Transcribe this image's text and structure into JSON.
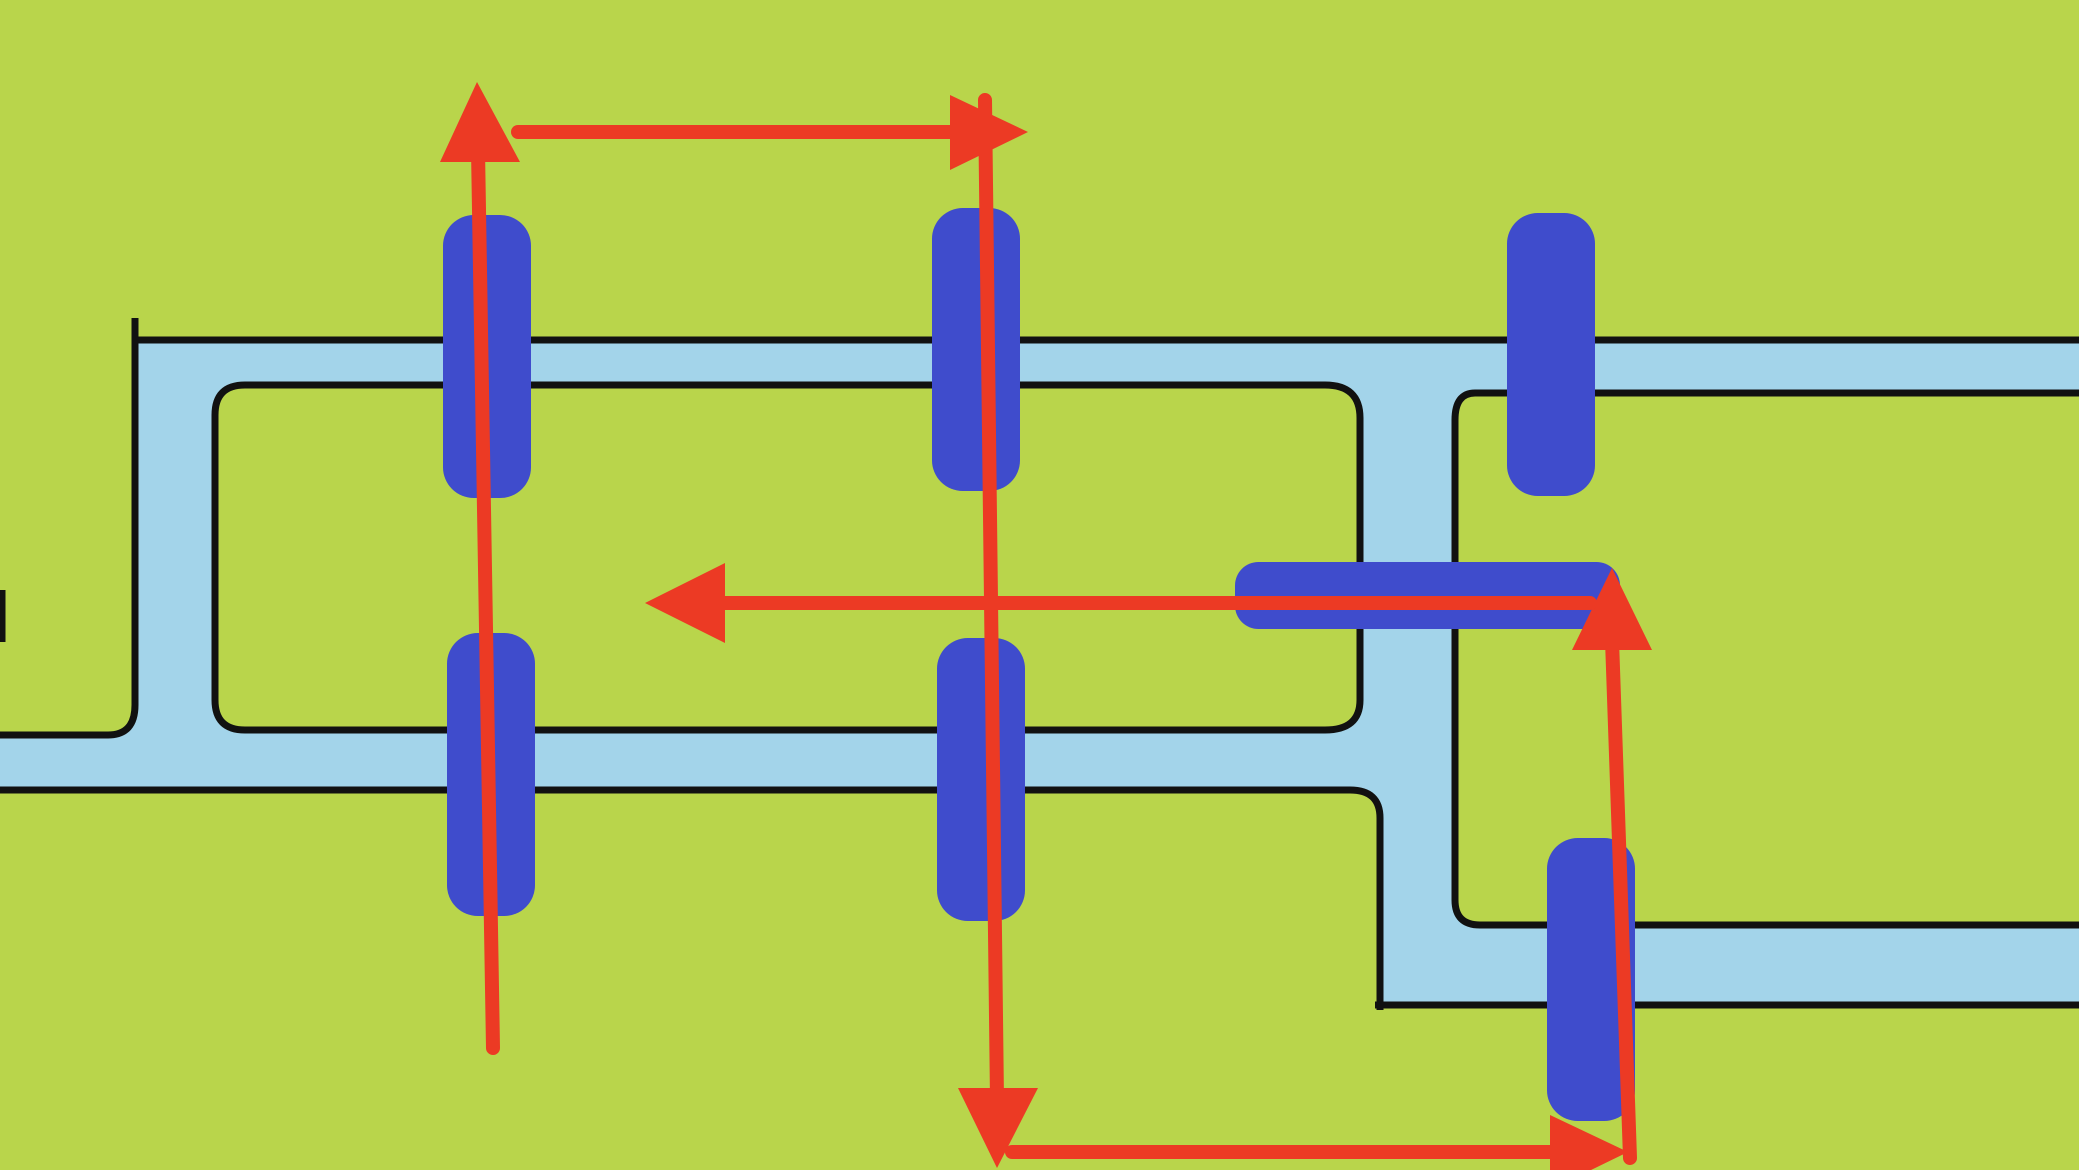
{
  "diagram": {
    "colors": {
      "background": "#b9d54b",
      "waterway": "#a3d4ea",
      "outline": "#111111",
      "marker": "#3f4ccc",
      "arrow": "#ec3a24"
    },
    "markers": [
      {
        "id": "marker-1",
        "orientation": "vertical"
      },
      {
        "id": "marker-2",
        "orientation": "vertical"
      },
      {
        "id": "marker-3",
        "orientation": "vertical"
      },
      {
        "id": "marker-4",
        "orientation": "vertical"
      },
      {
        "id": "marker-5",
        "orientation": "vertical"
      },
      {
        "id": "marker-6",
        "orientation": "horizontal"
      },
      {
        "id": "marker-7",
        "orientation": "vertical"
      }
    ],
    "arrows": [
      {
        "id": "arrow-1",
        "direction": "up"
      },
      {
        "id": "arrow-2",
        "direction": "right"
      },
      {
        "id": "arrow-3",
        "direction": "down"
      },
      {
        "id": "arrow-4",
        "direction": "right"
      },
      {
        "id": "arrow-5",
        "direction": "up"
      },
      {
        "id": "arrow-6",
        "direction": "left"
      }
    ]
  }
}
